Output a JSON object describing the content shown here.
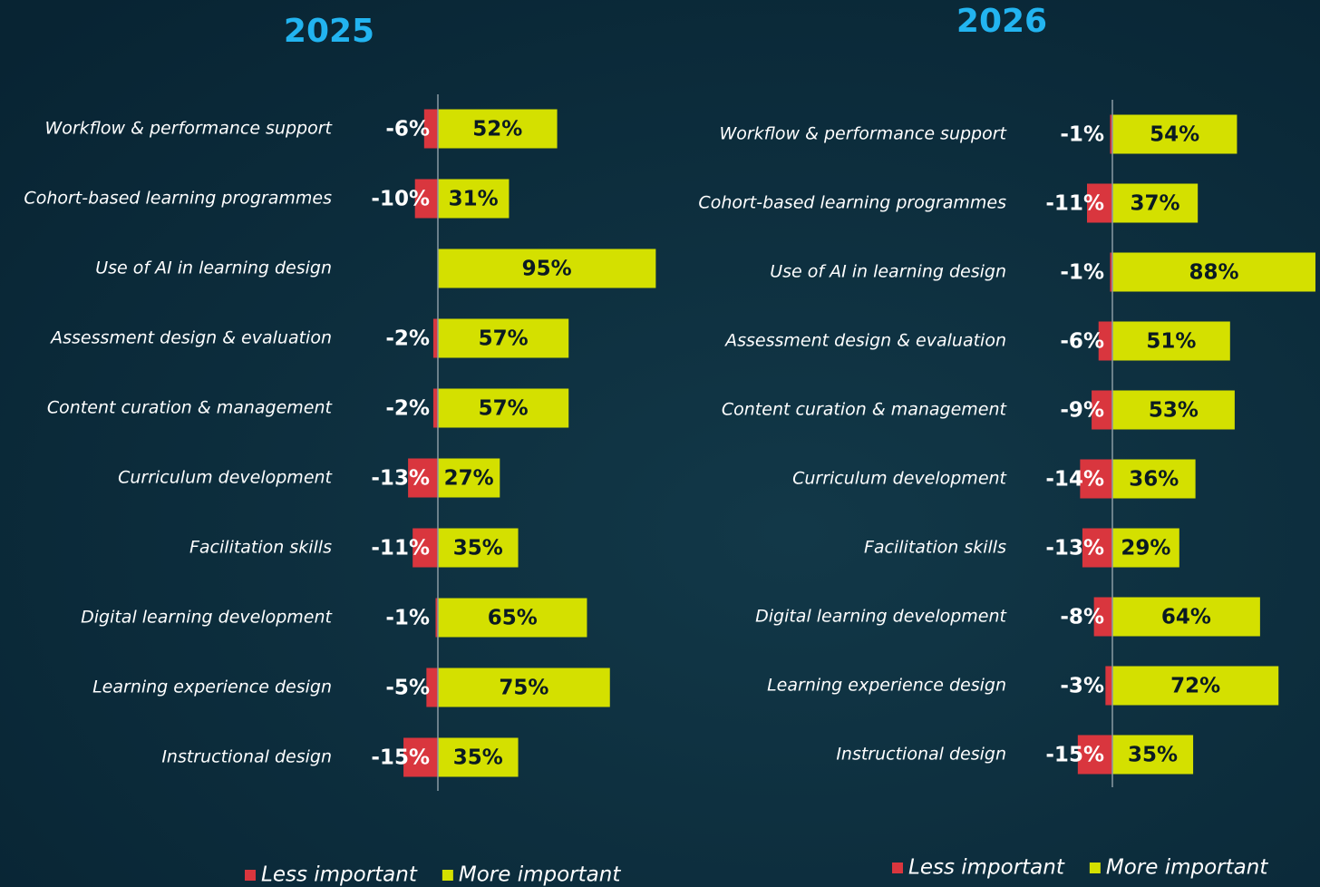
{
  "chart_data": [
    {
      "type": "bar",
      "title": "2025",
      "categories": [
        "Workflow & performance support",
        "Cohort-based learning programmes",
        "Use of AI in learning design",
        "Assessment design & evaluation",
        "Content curation & management",
        "Curriculum development",
        "Facilitation skills",
        "Digital learning development",
        "Learning experience design",
        "Instructional design"
      ],
      "series": [
        {
          "name": "Less important",
          "color": "#d9363e",
          "values": [
            -6,
            -10,
            null,
            -2,
            -2,
            -13,
            -11,
            -1,
            -5,
            -15
          ],
          "value_labels": [
            "-6%",
            "-10%",
            null,
            "-2%",
            "-2%",
            "-13%",
            "-11%",
            "-1%",
            "-5%",
            "-15%"
          ]
        },
        {
          "name": "More important",
          "color": "#d4e000",
          "values": [
            52,
            31,
            95,
            57,
            57,
            27,
            35,
            65,
            75,
            35
          ],
          "value_labels": [
            "52%",
            "31%",
            "95%",
            "57%",
            "57%",
            "27%",
            "35%",
            "65%",
            "75%",
            "35%"
          ]
        }
      ]
    },
    {
      "type": "bar",
      "title": "2026",
      "categories": [
        "Workflow & performance support",
        "Cohort-based learning programmes",
        "Use of AI in learning design",
        "Assessment design & evaluation",
        "Content curation & management",
        "Curriculum development",
        "Facilitation skills",
        "Digital learning development",
        "Learning experience design",
        "Instructional design"
      ],
      "series": [
        {
          "name": "Less important",
          "color": "#d9363e",
          "values": [
            -1,
            -11,
            -1,
            -6,
            -9,
            -14,
            -13,
            -8,
            -3,
            -15
          ],
          "value_labels": [
            "-1%",
            "-11%",
            "-1%",
            "-6%",
            "-9%",
            "-14%",
            "-13%",
            "-8%",
            "-3%",
            "-15%"
          ]
        },
        {
          "name": "More important",
          "color": "#d4e000",
          "values": [
            54,
            37,
            88,
            51,
            53,
            36,
            29,
            64,
            72,
            35
          ],
          "value_labels": [
            "54%",
            "37%",
            "88%",
            "51%",
            "53%",
            "36%",
            "29%",
            "64%",
            "72%",
            "35%"
          ]
        }
      ]
    }
  ]
}
